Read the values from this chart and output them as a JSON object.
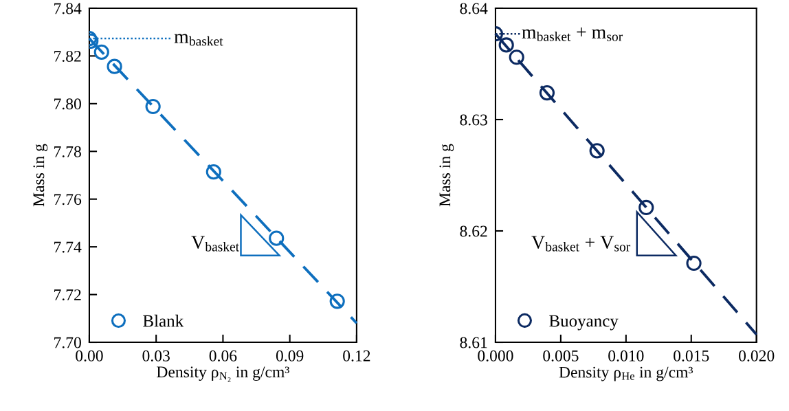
{
  "chart_data": [
    {
      "type": "scatter",
      "xlabel": "Density ρ$_{N₂}$ in g/cm³",
      "ylabel": "Mass in g",
      "xlim": [
        0,
        0.12
      ],
      "ylim": [
        7.7,
        7.84
      ],
      "xticks": [
        {
          "value": 0,
          "label": "0.00"
        },
        {
          "value": 0.03,
          "label": "0.03"
        },
        {
          "value": 0.06,
          "label": "0.06"
        },
        {
          "value": 0.09,
          "label": "0.09"
        },
        {
          "value": 0.12,
          "label": "0.12"
        }
      ],
      "yticks": [
        {
          "value": 7.7,
          "label": "7.70"
        },
        {
          "value": 7.72,
          "label": "7.72"
        },
        {
          "value": 7.74,
          "label": "7.74"
        },
        {
          "value": 7.76,
          "label": "7.76"
        },
        {
          "value": 7.78,
          "label": "7.78"
        },
        {
          "value": 7.8,
          "label": "7.80"
        },
        {
          "value": 7.82,
          "label": "7.82"
        },
        {
          "value": 7.84,
          "label": "7.84"
        }
      ],
      "grid": false,
      "legend": "bottom left",
      "series": [
        {
          "type": "line",
          "color": "#0e6fbe",
          "line_style": "dashed",
          "marker": "none",
          "x": [
            0,
            0.12
          ],
          "values": [
            7.8273,
            7.708
          ]
        },
        {
          "type": "line",
          "color": "#0e6fbe",
          "line_style": "dotted",
          "marker": "none",
          "x": [
            0,
            0.037
          ],
          "values": [
            7.8273,
            7.8273
          ]
        },
        {
          "name": "Blank",
          "color": "#0e6fbe",
          "marker": "circle",
          "x": [
            0,
            0.0007,
            0.0055,
            0.0113,
            0.0286,
            0.0558,
            0.084,
            0.1113
          ],
          "values": [
            7.8273,
            7.8262,
            7.8216,
            7.8156,
            7.7988,
            7.7714,
            7.7436,
            7.7172
          ]
        }
      ],
      "annotations": [
        {
          "text": "m$_{basket}$",
          "x": 0.038,
          "y": 7.8273
        },
        "V$_{basket}$"
      ]
    },
    {
      "type": "scatter",
      "xlabel": "Density ρ$_{He}$ in g/cm³",
      "ylabel": "Mass in g",
      "xlim": [
        0,
        0.02
      ],
      "ylim": [
        8.61,
        8.64
      ],
      "xticks": [
        {
          "value": 0,
          "label": "0.000"
        },
        {
          "value": 0.005,
          "label": "0.005"
        },
        {
          "value": 0.01,
          "label": "0.010"
        },
        {
          "value": 0.015,
          "label": "0.015"
        },
        {
          "value": 0.02,
          "label": "0.020"
        }
      ],
      "yticks": [
        8.61,
        8.62,
        8.63,
        8.64
      ],
      "grid": false,
      "legend": "bottom left",
      "series": [
        {
          "type": "line",
          "color": "#0c2a62",
          "line_style": "dashed",
          "marker": "none",
          "x": [
            0,
            0.02
          ],
          "values": [
            8.6377,
            8.6107
          ]
        },
        {
          "type": "line",
          "color": "#0c2a62",
          "line_style": "dotted",
          "marker": "none",
          "x": [
            0,
            0.0019
          ],
          "values": [
            8.6377,
            8.6377
          ]
        },
        {
          "name": "Buoyancy",
          "color": "#0c2a62",
          "marker": "circle",
          "x": [
            0,
            0.00083,
            0.00162,
            0.00395,
            0.00778,
            0.01155,
            0.0152
          ],
          "values": [
            8.6377,
            8.6367,
            8.6356,
            8.6324,
            8.6272,
            8.6221,
            8.6171
          ]
        }
      ],
      "annotations": [
        {
          "text": "m$_{basket}$ + m$_{sor}$",
          "x": 0.002,
          "y": 8.6377
        },
        "V$_{basket}$ + V$_{sor}$"
      ]
    }
  ]
}
